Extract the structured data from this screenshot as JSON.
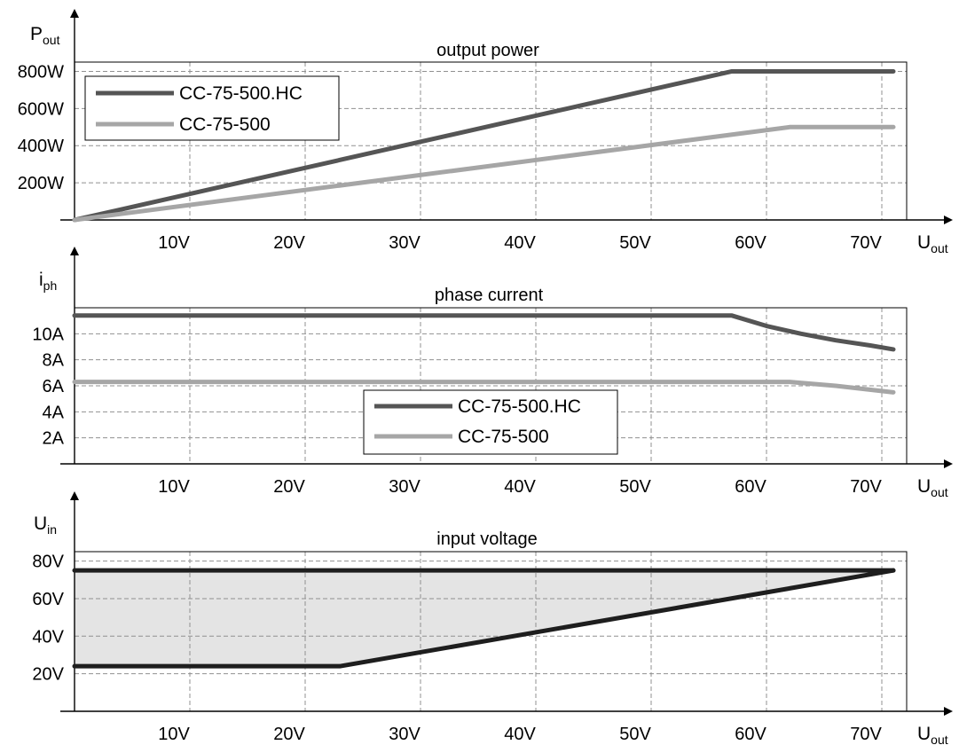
{
  "colors": {
    "hc": "#555555",
    "std": "#a6a6a6",
    "band_fill": "#e4e4e4",
    "band_line": "#1e1e1e",
    "grid": "#909090"
  },
  "chart_data": [
    {
      "type": "line",
      "title": "output power",
      "ylabel": {
        "main": "P",
        "sub": "out"
      },
      "xlabel": {
        "main": "U",
        "sub": "out"
      },
      "xlim": [
        0,
        72
      ],
      "ylim": [
        0,
        850
      ],
      "x_ticks": [
        10,
        20,
        30,
        40,
        50,
        60,
        70
      ],
      "x_tick_labels": [
        "10V",
        "20V",
        "30V",
        "40V",
        "50V",
        "60V",
        "70V"
      ],
      "y_ticks": [
        200,
        400,
        600,
        800
      ],
      "y_tick_labels": [
        "200W",
        "400W",
        "600W",
        "800W"
      ],
      "grid": true,
      "legend_position": "top-left",
      "series": [
        {
          "name": "CC-75-500.HC",
          "color_key": "hc",
          "x": [
            0,
            57,
            71
          ],
          "y": [
            0,
            800,
            800
          ]
        },
        {
          "name": "CC-75-500",
          "color_key": "std",
          "x": [
            0,
            62,
            71
          ],
          "y": [
            0,
            500,
            500
          ]
        }
      ]
    },
    {
      "type": "line",
      "title": "phase current",
      "ylabel": {
        "main": "i",
        "sub": "ph"
      },
      "xlabel": {
        "main": "U",
        "sub": "out"
      },
      "xlim": [
        0,
        72
      ],
      "ylim": [
        0,
        12
      ],
      "x_ticks": [
        10,
        20,
        30,
        40,
        50,
        60,
        70
      ],
      "x_tick_labels": [
        "10V",
        "20V",
        "30V",
        "40V",
        "50V",
        "60V",
        "70V"
      ],
      "y_ticks": [
        2,
        4,
        6,
        8,
        10
      ],
      "y_tick_labels": [
        "2A",
        "4A",
        "6A",
        "8A",
        "10A"
      ],
      "grid": true,
      "legend_position": "bottom-center",
      "series": [
        {
          "name": "CC-75-500.HC",
          "color_key": "hc",
          "x": [
            0,
            57,
            60,
            63,
            66,
            69,
            71
          ],
          "y": [
            11.4,
            11.4,
            10.6,
            10.0,
            9.5,
            9.1,
            8.8
          ]
        },
        {
          "name": "CC-75-500",
          "color_key": "std",
          "x": [
            0,
            62,
            66,
            71
          ],
          "y": [
            6.3,
            6.3,
            6.0,
            5.5
          ]
        }
      ]
    },
    {
      "type": "area",
      "title": "input voltage",
      "ylabel": {
        "main": "U",
        "sub": "in"
      },
      "xlabel": {
        "main": "U",
        "sub": "out"
      },
      "xlim": [
        0,
        72
      ],
      "ylim": [
        0,
        85
      ],
      "x_ticks": [
        10,
        20,
        30,
        40,
        50,
        60,
        70
      ],
      "x_tick_labels": [
        "10V",
        "20V",
        "30V",
        "40V",
        "50V",
        "60V",
        "70V"
      ],
      "y_ticks": [
        20,
        40,
        60,
        80
      ],
      "y_tick_labels": [
        "20V",
        "40V",
        "60V",
        "80V"
      ],
      "grid": true,
      "upper": {
        "x": [
          0,
          71
        ],
        "y": [
          75,
          75
        ]
      },
      "lower": {
        "x": [
          0,
          23,
          71
        ],
        "y": [
          24,
          24,
          75
        ]
      }
    }
  ]
}
